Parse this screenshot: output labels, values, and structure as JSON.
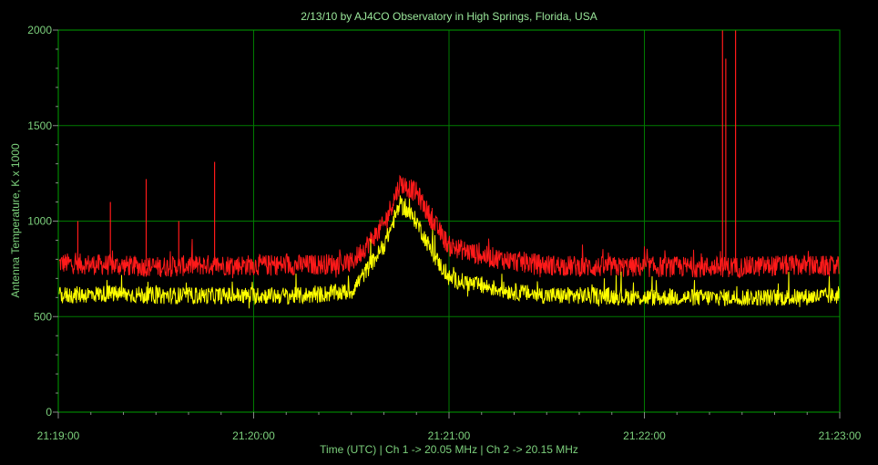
{
  "chart_data": {
    "type": "line",
    "title": "2/13/10  by  AJ4CO Observatory  in  High Springs, Florida, USA",
    "xlabel": "Time (UTC)  |  Ch 1 -> 20.05 MHz  |  Ch 2 -> 20.15 MHz",
    "ylabel": "Antenna Temperature, K x 1000",
    "xlim": [
      "21:19:00",
      "21:23:00"
    ],
    "ylim": [
      0,
      2000
    ],
    "x_ticks": [
      "21:19:00",
      "21:20:00",
      "21:21:00",
      "21:22:00",
      "21:23:00"
    ],
    "y_ticks": [
      0,
      500,
      1000,
      1500,
      2000
    ],
    "grid": true,
    "colors": {
      "background": "#000000",
      "grid": "#007a00",
      "axis_text": "#7cd07c",
      "ch1": "#ff1a1a",
      "ch2": "#ffff00"
    },
    "series": [
      {
        "channel": "Ch 1",
        "color": "#ff1a1a",
        "x": [
          "21:19:00",
          "21:19:15",
          "21:19:30",
          "21:19:45",
          "21:20:00",
          "21:20:15",
          "21:20:30",
          "21:20:40",
          "21:20:45",
          "21:20:50",
          "21:20:55",
          "21:21:00",
          "21:21:10",
          "21:21:20",
          "21:21:30",
          "21:21:45",
          "21:22:00",
          "21:22:15",
          "21:22:30",
          "21:22:45",
          "21:23:00"
        ],
        "values": [
          780,
          770,
          760,
          770,
          770,
          770,
          780,
          980,
          1200,
          1150,
          1000,
          870,
          820,
          790,
          770,
          760,
          760,
          760,
          760,
          770,
          760
        ],
        "spikes": [
          {
            "x": "21:19:06",
            "value": 1000
          },
          {
            "x": "21:19:16",
            "value": 1100
          },
          {
            "x": "21:19:27",
            "value": 1220
          },
          {
            "x": "21:19:37",
            "value": 1000
          },
          {
            "x": "21:19:48",
            "value": 1310
          },
          {
            "x": "21:22:24",
            "value": 2000
          },
          {
            "x": "21:22:25",
            "value": 1850
          },
          {
            "x": "21:22:28",
            "value": 2000
          }
        ]
      },
      {
        "channel": "Ch 2",
        "color": "#ffff00",
        "x": [
          "21:19:00",
          "21:19:15",
          "21:19:30",
          "21:19:45",
          "21:20:00",
          "21:20:15",
          "21:20:30",
          "21:20:40",
          "21:20:45",
          "21:20:50",
          "21:20:55",
          "21:21:00",
          "21:21:10",
          "21:21:20",
          "21:21:30",
          "21:21:45",
          "21:22:00",
          "21:22:15",
          "21:22:30",
          "21:22:45",
          "21:23:00"
        ],
        "values": [
          610,
          620,
          610,
          610,
          610,
          610,
          630,
          870,
          1090,
          1000,
          830,
          700,
          660,
          630,
          610,
          610,
          600,
          600,
          600,
          600,
          610
        ]
      }
    ]
  }
}
